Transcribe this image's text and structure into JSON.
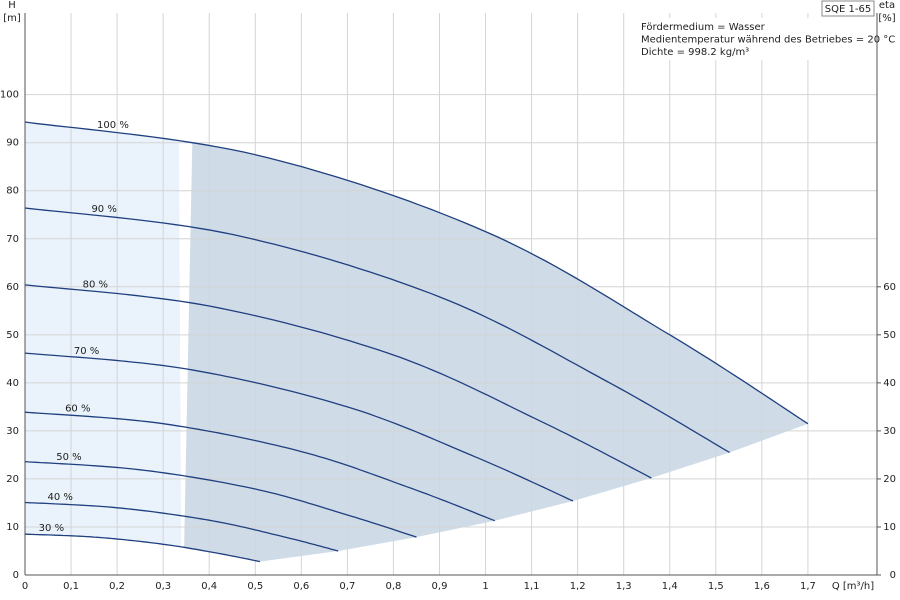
{
  "chart_data": {
    "type": "line",
    "product": "SQE 1-65",
    "info": [
      "Fördermedium = Wasser",
      "Medientemperatur während des Betriebes = 20 °C",
      "Dichte = 998.2 kg/m³"
    ],
    "xlabel": "Q [m³/h]",
    "ylabel": "H",
    "ylabel_unit": "[m]",
    "y2label": "eta",
    "y2label_unit": "[%]",
    "xlim": [
      0,
      1.85
    ],
    "ylim": [
      0,
      117
    ],
    "y2lim": [
      0,
      117
    ],
    "xticks": [
      0,
      0.1,
      0.2,
      0.3,
      0.4,
      0.5,
      0.6,
      0.7,
      0.8,
      0.9,
      1,
      1.1,
      1.2,
      1.3,
      1.4,
      1.5,
      1.6,
      1.7
    ],
    "xtick_labels": [
      "0",
      "0,1",
      "0,2",
      "0,3",
      "0,4",
      "0,5",
      "0,6",
      "0,7",
      "0,8",
      "0,9",
      "1",
      "1,1",
      "1,2",
      "1,3",
      "1,4",
      "1,5",
      "1,6",
      "1,7"
    ],
    "yticks": [
      0,
      10,
      20,
      30,
      40,
      50,
      60,
      70,
      80,
      90,
      100
    ],
    "y2ticks": [
      0,
      10,
      20,
      30,
      40,
      50,
      60
    ],
    "grid": true,
    "min_flow": 0.34,
    "color": "#1f3f7f",
    "area_color": "#cfdce8",
    "low_flow_color": "#eaf3fb",
    "series": [
      {
        "name": "100 %",
        "x": [
          0,
          0.5,
          1,
          1.4,
          1.7
        ],
        "values": [
          94.3,
          87.5,
          71.5,
          50,
          31.5
        ]
      },
      {
        "name": "90 %",
        "x": [
          0,
          0.45,
          0.9,
          1.26,
          1.53
        ],
        "values": [
          76.4,
          70.9,
          57.9,
          40.5,
          25.5
        ]
      },
      {
        "name": "80 %",
        "x": [
          0,
          0.4,
          0.8,
          1.12,
          1.36
        ],
        "values": [
          60.4,
          56,
          45.8,
          32,
          20.2
        ]
      },
      {
        "name": "70 %",
        "x": [
          0,
          0.35,
          0.7,
          0.98,
          1.19
        ],
        "values": [
          46.2,
          42.9,
          35,
          24.5,
          15.4
        ]
      },
      {
        "name": "60 %",
        "x": [
          0,
          0.3,
          0.6,
          0.84,
          1.02
        ],
        "values": [
          33.9,
          31.5,
          25.7,
          18,
          11.3
        ]
      },
      {
        "name": "50 %",
        "x": [
          0,
          0.25,
          0.5,
          0.7,
          0.85
        ],
        "values": [
          23.6,
          21.9,
          17.9,
          12.5,
          7.9
        ]
      },
      {
        "name": "40 %",
        "x": [
          0,
          0.2,
          0.4,
          0.56,
          0.68
        ],
        "values": [
          15.1,
          14,
          11.4,
          8,
          5
        ]
      },
      {
        "name": "30 %",
        "x": [
          0,
          0.15,
          0.3,
          0.42,
          0.51
        ],
        "values": [
          8.5,
          7.9,
          6.4,
          4.5,
          2.8
        ]
      }
    ]
  }
}
